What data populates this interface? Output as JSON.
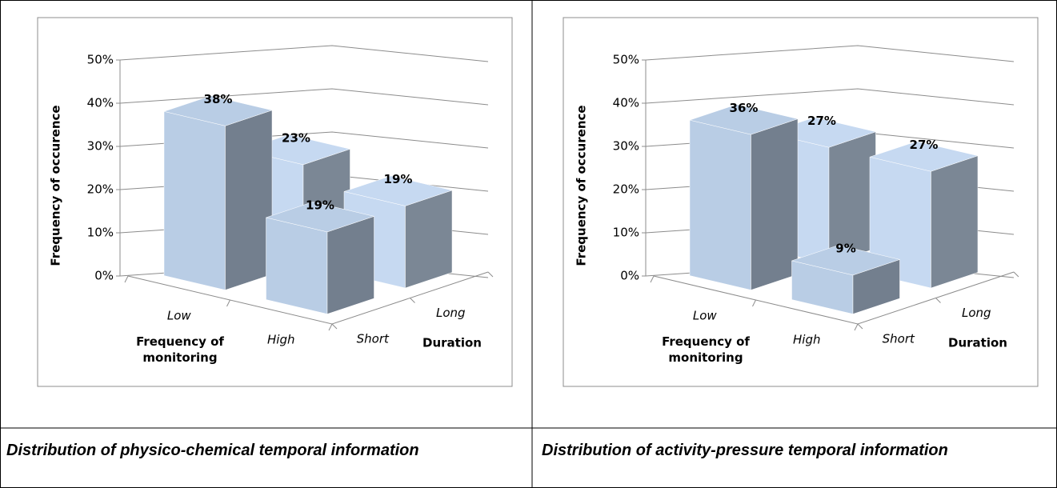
{
  "chart_data": [
    {
      "type": "bar3d",
      "categories": [
        "Low",
        "High"
      ],
      "xlabel": "Frequency of monitoring",
      "zlabel": "Duration",
      "ylabel": "Frequency of occurence",
      "ylim": [
        0,
        50
      ],
      "yticks": [
        {
          "value": 0,
          "label": "0%"
        },
        {
          "value": 10,
          "label": "10%"
        },
        {
          "value": 20,
          "label": "20%"
        },
        {
          "value": 30,
          "label": "30%"
        },
        {
          "value": 40,
          "label": "40%"
        },
        {
          "value": 50,
          "label": "50%"
        }
      ],
      "series": [
        {
          "name": "Short",
          "color": "#b9cde5",
          "values": [
            38,
            19
          ],
          "value_labels": [
            "38%",
            "19%"
          ]
        },
        {
          "name": "Long",
          "color": "#c6d9f1",
          "values": [
            23,
            19
          ],
          "value_labels": [
            "23%",
            "19%"
          ]
        }
      ]
    },
    {
      "type": "bar3d",
      "categories": [
        "Low",
        "High"
      ],
      "xlabel": "Frequency of monitoring",
      "zlabel": "Duration",
      "ylabel": "Frequency of occurence",
      "ylim": [
        0,
        50
      ],
      "yticks": [
        {
          "value": 0,
          "label": "0%"
        },
        {
          "value": 10,
          "label": "10%"
        },
        {
          "value": 20,
          "label": "20%"
        },
        {
          "value": 30,
          "label": "30%"
        },
        {
          "value": 40,
          "label": "40%"
        },
        {
          "value": 50,
          "label": "50%"
        }
      ],
      "series": [
        {
          "name": "Short",
          "color": "#b9cde5",
          "values": [
            36,
            9
          ],
          "value_labels": [
            "36%",
            "9%"
          ]
        },
        {
          "name": "Long",
          "color": "#c6d9f1",
          "values": [
            27,
            27
          ],
          "value_labels": [
            "27%",
            "27%"
          ]
        }
      ]
    }
  ],
  "captions": [
    "Distribution of physico-chemical temporal information",
    "Distribution of activity-pressure temporal information"
  ]
}
